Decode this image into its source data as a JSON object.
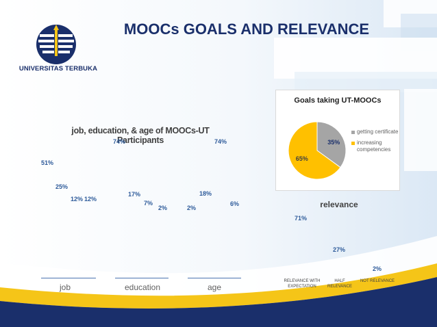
{
  "header": {
    "title": "MOOCs GOALS AND RELEVANCE",
    "university": "UNIVERSITAS TERBUKA"
  },
  "colors": {
    "navy": "#1a2f6b",
    "yellow": "#f5c518",
    "pie_grey": "#a5a5a5",
    "pie_yellow": "#ffc000",
    "value_blue": "#2e5b9a"
  },
  "icons": [
    "universitas-terbuka-logo"
  ],
  "chart_data": [
    {
      "type": "bar",
      "title": "job, education, & age of MOOCs-UT Participants",
      "groups": [
        {
          "label": "job",
          "values": [
            "51%",
            "25%",
            "12%",
            "12%"
          ]
        },
        {
          "label": "education",
          "values": [
            "74%",
            "17%",
            "7%",
            "2%"
          ]
        },
        {
          "label": "age",
          "values": [
            "2%",
            "74%",
            "18%",
            "6%"
          ]
        }
      ],
      "numeric": [
        [
          51,
          25,
          12,
          12
        ],
        [
          74,
          17,
          7,
          2
        ],
        [
          2,
          74,
          18,
          6
        ]
      ],
      "ylim": [
        0,
        80
      ]
    },
    {
      "type": "pie",
      "title": "Goals taking UT-MOOCs",
      "slices": [
        {
          "label": "getting certificate",
          "value": 35,
          "label_text": "35%",
          "color": "#a5a5a5"
        },
        {
          "label": "increasing competencies",
          "value": 65,
          "label_text": "65%",
          "color": "#ffc000"
        }
      ],
      "legend": "right"
    },
    {
      "type": "bar",
      "title": "relevance",
      "categories": [
        "RELEVANCE WITH EXPECTATION",
        "HALF RELEVANCE",
        "NOT RELEVANCE"
      ],
      "values": [
        71,
        27,
        2
      ],
      "value_labels": [
        "71%",
        "27%",
        "2%"
      ],
      "ylim": [
        0,
        75
      ]
    }
  ]
}
